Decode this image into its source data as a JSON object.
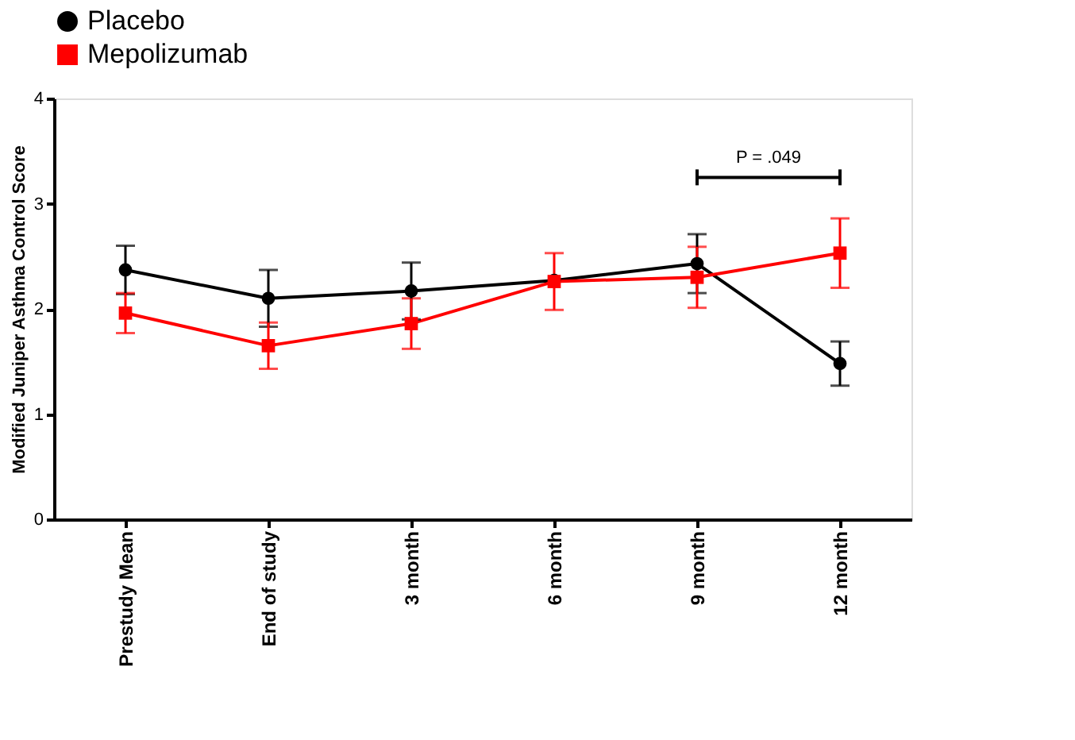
{
  "chart_data": {
    "type": "line",
    "ylabel": "Modified Juniper Asthma Control Score",
    "categories": [
      "Prestudy Mean",
      "End of study",
      "3 month",
      "6 month",
      "9 month",
      "12 month"
    ],
    "series": [
      {
        "name": "Placebo",
        "color": "#000000",
        "marker": "circle",
        "values": [
          2.37,
          2.1,
          2.17,
          2.27,
          2.43,
          1.48
        ],
        "errors": [
          0.23,
          0.27,
          0.27,
          null,
          0.28,
          0.21
        ]
      },
      {
        "name": "Mepolizumab",
        "color": "#ff0000",
        "marker": "square",
        "values": [
          1.96,
          1.65,
          1.86,
          2.26,
          2.3,
          2.53
        ],
        "errors": [
          0.19,
          0.22,
          0.24,
          0.27,
          0.29,
          0.33
        ]
      }
    ],
    "annotations": [
      "P = .049"
    ],
    "ylim": [
      0,
      4
    ],
    "yticks": [
      0,
      1,
      2,
      3,
      4
    ],
    "grid": false,
    "legend": "top",
    "line_style": "solid"
  }
}
